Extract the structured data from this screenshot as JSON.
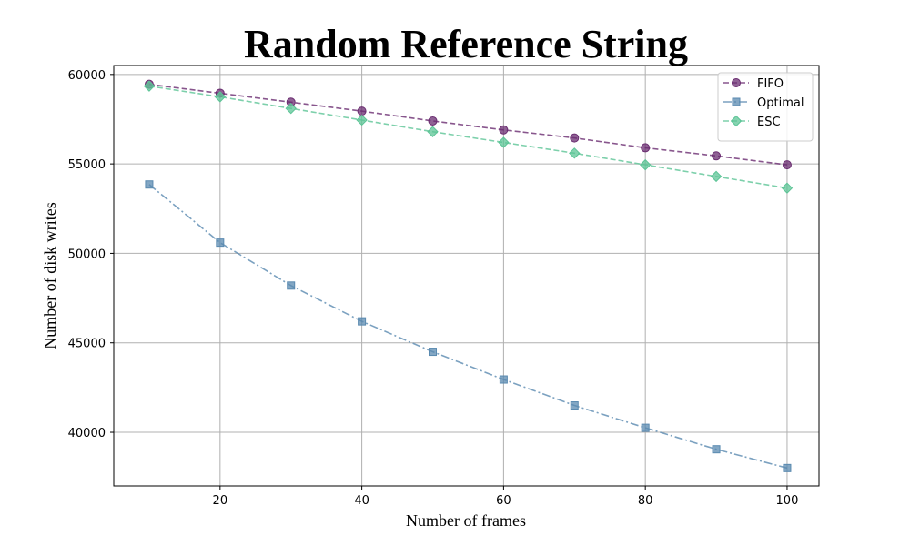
{
  "chart_data": {
    "type": "line",
    "title": "Random Reference String",
    "xlabel": "Number of frames",
    "ylabel": "Number of disk writes",
    "x": [
      10,
      20,
      30,
      40,
      50,
      60,
      70,
      80,
      90,
      100
    ],
    "xlim": [
      5,
      104.5
    ],
    "ylim": [
      37000,
      60500
    ],
    "xticks": [
      20,
      40,
      60,
      80,
      100
    ],
    "yticks": [
      40000,
      45000,
      50000,
      55000,
      60000
    ],
    "grid": true,
    "legend_position": "top-right",
    "series": [
      {
        "name": "FIFO",
        "values": [
          59450,
          58950,
          58450,
          57950,
          57400,
          56900,
          56450,
          55900,
          55450,
          54950
        ],
        "color": "#6a2c70",
        "marker": "circle",
        "line_style": "dashed"
      },
      {
        "name": "Optimal",
        "values": [
          53850,
          50600,
          48200,
          46200,
          44500,
          42950,
          41500,
          40250,
          39050,
          38000
        ],
        "color": "#5a8ab0",
        "marker": "square",
        "line_style": "dash-dot"
      },
      {
        "name": "ESC",
        "values": [
          59350,
          58750,
          58100,
          57450,
          56800,
          56200,
          55600,
          54950,
          54300,
          53650
        ],
        "color": "#5cc496",
        "marker": "diamond",
        "line_style": "dashed"
      }
    ]
  }
}
